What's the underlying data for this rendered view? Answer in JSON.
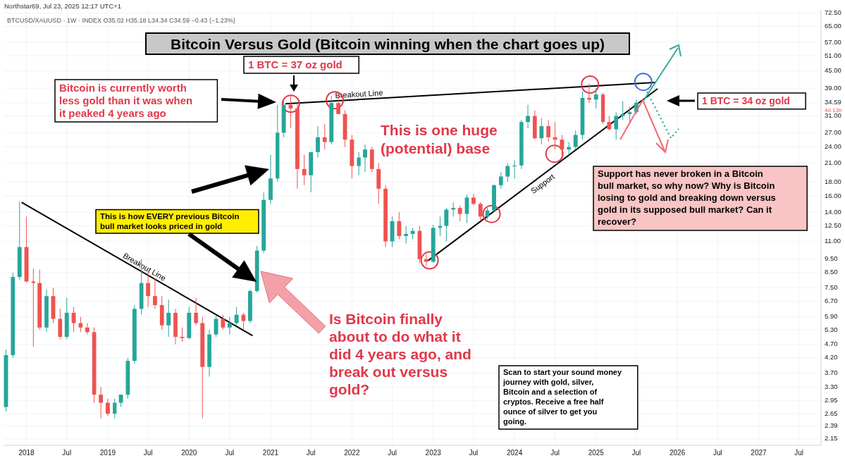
{
  "chart_data": {
    "type": "candlestick",
    "title": "Bitcoin Versus Gold (Bitcoin winning when the chart goes up)",
    "subtitle": "BTCUSD/XAUUSD · 1W · INDEX  O35.02  H35.18  L34.34  C34.59  −0.43 (−1.23%)",
    "annotations": [
      "1 BTC = 37 oz gold",
      "Bitcoin is currently worth less gold than it was when it peaked 4 years ago",
      "This is one huge (potential) base",
      "This is how EVERY previous Bitcoin bull market looks priced in gold",
      "Is Bitcoin finally about to do what it did 4 years ago, and break out versus gold?",
      "1 BTC = 34 oz gold",
      "Support has never broken in a Bitcoin bull market, so why now? Why is Bitcoin losing to gold and breaking down versus gold in its supposed bull market? Can it recover?",
      "Scan to start your sound money journey with gold, silver, Bitcoin and a selection of cryptos. Receive a free half ounce of silver to get you going.",
      "Northstar69, Jul 23, 2025 12:17 UTC+1",
      "4d 13h"
    ],
    "x": [
      "2017-10",
      "2017-11",
      "2017-12",
      "2018-01",
      "2018-02",
      "2018-03",
      "2018-04",
      "2018-05",
      "2018-06",
      "2018-07",
      "2018-08",
      "2018-09",
      "2018-10",
      "2018-11",
      "2018-12",
      "2019-01",
      "2019-02",
      "2019-03",
      "2019-04",
      "2019-05",
      "2019-06",
      "2019-07",
      "2019-08",
      "2019-09",
      "2019-10",
      "2019-11",
      "2019-12",
      "2020-01",
      "2020-02",
      "2020-03",
      "2020-04",
      "2020-05",
      "2020-06",
      "2020-07",
      "2020-08",
      "2020-09",
      "2020-10",
      "2020-11",
      "2020-12",
      "2021-01",
      "2021-02",
      "2021-03",
      "2021-04",
      "2021-05",
      "2021-06",
      "2021-07",
      "2021-08",
      "2021-09",
      "2021-10",
      "2021-11",
      "2021-12",
      "2022-01",
      "2022-02",
      "2022-03",
      "2022-04",
      "2022-05",
      "2022-06",
      "2022-07",
      "2022-08",
      "2022-09",
      "2022-10",
      "2022-11",
      "2022-12",
      "2023-01",
      "2023-02",
      "2023-03",
      "2023-04",
      "2023-05",
      "2023-06",
      "2023-07",
      "2023-08",
      "2023-09",
      "2023-10",
      "2023-11",
      "2023-12",
      "2024-01",
      "2024-02",
      "2024-03",
      "2024-04",
      "2024-05",
      "2024-06",
      "2024-07",
      "2024-08",
      "2024-09",
      "2024-10",
      "2024-11",
      "2024-12",
      "2025-01",
      "2025-02",
      "2025-03",
      "2025-04",
      "2025-05",
      "2025-06",
      "2025-07"
    ],
    "ohlc": [
      [
        2.8,
        4.5,
        2.7,
        4.3
      ],
      [
        4.3,
        8.5,
        4.2,
        8.2
      ],
      [
        8.2,
        15.3,
        8.0,
        10.5
      ],
      [
        10.5,
        13.5,
        7.8,
        7.9
      ],
      [
        7.9,
        8.8,
        4.6,
        7.8
      ],
      [
        7.8,
        8.7,
        5.3,
        5.4
      ],
      [
        5.4,
        7.4,
        5.2,
        7.0
      ],
      [
        7.0,
        7.5,
        5.6,
        5.8
      ],
      [
        5.8,
        6.3,
        4.9,
        5.0
      ],
      [
        5.0,
        6.9,
        4.9,
        6.1
      ],
      [
        6.1,
        6.4,
        5.2,
        5.6
      ],
      [
        5.6,
        5.9,
        5.2,
        5.4
      ],
      [
        5.4,
        5.6,
        5.1,
        5.2
      ],
      [
        5.2,
        5.4,
        2.9,
        3.1
      ],
      [
        3.1,
        3.3,
        2.55,
        2.9
      ],
      [
        2.9,
        3.0,
        2.6,
        2.65
      ],
      [
        2.65,
        3.0,
        2.55,
        2.9
      ],
      [
        2.9,
        3.1,
        2.8,
        3.1
      ],
      [
        3.1,
        4.2,
        3.0,
        4.1
      ],
      [
        4.1,
        6.5,
        4.0,
        6.3
      ],
      [
        6.3,
        9.5,
        6.0,
        7.8
      ],
      [
        7.8,
        8.6,
        6.4,
        7.0
      ],
      [
        7.0,
        8.1,
        6.3,
        6.5
      ],
      [
        6.5,
        7.0,
        5.3,
        5.5
      ],
      [
        5.5,
        6.8,
        5.0,
        6.1
      ],
      [
        6.1,
        6.3,
        4.7,
        5.0
      ],
      [
        5.0,
        5.4,
        4.8,
        4.95
      ],
      [
        4.95,
        6.4,
        4.9,
        6.1
      ],
      [
        6.1,
        6.9,
        5.5,
        5.6
      ],
      [
        5.6,
        5.9,
        2.55,
        3.9
      ],
      [
        3.9,
        5.3,
        3.6,
        5.1
      ],
      [
        5.1,
        6.0,
        5.0,
        5.8
      ],
      [
        5.8,
        6.0,
        5.3,
        5.4
      ],
      [
        5.4,
        5.9,
        5.1,
        5.6
      ],
      [
        5.6,
        6.4,
        5.5,
        6.0
      ],
      [
        6.0,
        6.1,
        5.3,
        5.7
      ],
      [
        5.7,
        7.4,
        5.6,
        7.3
      ],
      [
        7.3,
        10.6,
        7.2,
        10.2
      ],
      [
        10.2,
        16.5,
        10.0,
        15.5
      ],
      [
        15.5,
        22.5,
        15.0,
        18.5
      ],
      [
        18.5,
        34.0,
        18.0,
        27.0
      ],
      [
        27.0,
        35.5,
        26.0,
        34.0
      ],
      [
        34.0,
        37.0,
        28.0,
        33.0
      ],
      [
        33.0,
        34.5,
        17.0,
        20.0
      ],
      [
        20.0,
        22.5,
        17.5,
        19.0
      ],
      [
        19.0,
        23.0,
        16.5,
        23.0
      ],
      [
        23.0,
        28.5,
        22.0,
        26.0
      ],
      [
        26.0,
        29.0,
        23.5,
        25.0
      ],
      [
        25.0,
        36.5,
        24.5,
        34.5
      ],
      [
        34.5,
        37.0,
        31.5,
        31.5
      ],
      [
        31.5,
        32.5,
        24.0,
        25.5
      ],
      [
        25.5,
        26.5,
        18.5,
        20.5
      ],
      [
        20.5,
        23.0,
        19.0,
        22.0
      ],
      [
        22.0,
        24.5,
        19.5,
        23.5
      ],
      [
        23.5,
        24.0,
        19.5,
        20.0
      ],
      [
        20.0,
        21.0,
        15.0,
        17.0
      ],
      [
        17.0,
        17.5,
        10.5,
        11.0
      ],
      [
        11.0,
        13.5,
        10.5,
        13.0
      ],
      [
        13.0,
        14.0,
        11.2,
        11.5
      ],
      [
        11.5,
        12.5,
        10.8,
        11.7
      ],
      [
        11.7,
        12.3,
        11.2,
        12.0
      ],
      [
        12.0,
        12.5,
        9.2,
        9.5
      ],
      [
        9.5,
        9.9,
        9.0,
        9.3
      ],
      [
        9.3,
        12.6,
        9.2,
        12.3
      ],
      [
        12.3,
        13.5,
        11.5,
        12.5
      ],
      [
        12.5,
        14.5,
        11.0,
        14.3
      ],
      [
        14.3,
        15.2,
        13.5,
        14.5
      ],
      [
        14.5,
        14.8,
        13.0,
        13.8
      ],
      [
        13.8,
        16.2,
        12.8,
        15.8
      ],
      [
        15.8,
        16.3,
        14.8,
        15.0
      ],
      [
        15.0,
        15.2,
        13.0,
        13.5
      ],
      [
        13.5,
        14.5,
        13.2,
        14.2
      ],
      [
        14.2,
        17.6,
        14.0,
        17.5
      ],
      [
        17.5,
        19.5,
        17.0,
        18.8
      ],
      [
        18.8,
        21.0,
        18.0,
        20.5
      ],
      [
        20.5,
        21.5,
        18.5,
        20.6
      ],
      [
        20.6,
        30.0,
        20.0,
        29.5
      ],
      [
        29.5,
        34.0,
        28.0,
        31.0
      ],
      [
        31.0,
        32.5,
        25.5,
        25.8
      ],
      [
        25.8,
        30.5,
        24.5,
        28.5
      ],
      [
        28.5,
        30.0,
        25.0,
        26.0
      ],
      [
        26.0,
        29.5,
        23.5,
        25.5
      ],
      [
        25.5,
        26.5,
        21.5,
        23.5
      ],
      [
        23.5,
        25.0,
        22.5,
        24.0
      ],
      [
        24.0,
        27.5,
        23.5,
        26.5
      ],
      [
        26.5,
        38.0,
        25.5,
        36.0
      ],
      [
        36.0,
        40.5,
        34.5,
        35.5
      ],
      [
        35.5,
        39.0,
        33.0,
        37.0
      ],
      [
        37.0,
        37.5,
        29.0,
        29.5
      ],
      [
        29.5,
        31.0,
        27.5,
        27.8
      ],
      [
        27.8,
        32.0,
        25.5,
        31.0
      ],
      [
        31.0,
        35.0,
        30.0,
        31.5
      ],
      [
        31.5,
        33.5,
        29.5,
        32.0
      ],
      [
        32.0,
        35.5,
        31.5,
        34.59
      ]
    ],
    "colors": [
      "#26a69a",
      "#26a69a",
      "#26a69a",
      "#ef5350",
      "#ef5350",
      "#ef5350",
      "#26a69a",
      "#ef5350",
      "#ef5350",
      "#26a69a",
      "#ef5350",
      "#ef5350",
      "#ef5350",
      "#ef5350",
      "#ef5350",
      "#ef5350",
      "#26a69a",
      "#26a69a",
      "#26a69a",
      "#26a69a",
      "#26a69a",
      "#ef5350",
      "#ef5350",
      "#ef5350",
      "#26a69a",
      "#ef5350",
      "#ef5350",
      "#26a69a",
      "#ef5350",
      "#ef5350",
      "#26a69a",
      "#26a69a",
      "#ef5350",
      "#26a69a",
      "#26a69a",
      "#ef5350",
      "#26a69a",
      "#26a69a",
      "#26a69a",
      "#26a69a",
      "#26a69a",
      "#26a69a",
      "#ef5350",
      "#ef5350",
      "#ef5350",
      "#26a69a",
      "#26a69a",
      "#ef5350",
      "#26a69a",
      "#ef5350",
      "#ef5350",
      "#ef5350",
      "#26a69a",
      "#26a69a",
      "#ef5350",
      "#ef5350",
      "#ef5350",
      "#26a69a",
      "#ef5350",
      "#26a69a",
      "#26a69a",
      "#ef5350",
      "#ef5350",
      "#26a69a",
      "#26a69a",
      "#26a69a",
      "#26a69a",
      "#ef5350",
      "#26a69a",
      "#ef5350",
      "#ef5350",
      "#26a69a",
      "#26a69a",
      "#26a69a",
      "#26a69a",
      "#26a69a",
      "#26a69a",
      "#26a69a",
      "#ef5350",
      "#26a69a",
      "#ef5350",
      "#ef5350",
      "#ef5350",
      "#26a69a",
      "#26a69a",
      "#26a69a",
      "#ef5350",
      "#26a69a",
      "#ef5350",
      "#ef5350",
      "#26a69a",
      "#26a69a",
      "#26a69a",
      "#26a69a"
    ],
    "series": [
      {
        "type": "line",
        "name": "Breakout Line",
        "color": "#000000",
        "x": [
          "2017-12-10",
          "2020-10-12"
        ],
        "values": [
          15.2,
          5.05
        ]
      },
      {
        "type": "line",
        "name": "Breakout Line",
        "color": "#000000",
        "x": [
          "2021-03-08",
          "2025-09-24"
        ],
        "values": [
          34.3,
          40.9
        ]
      },
      {
        "type": "line",
        "name": "Support",
        "color": "#000000",
        "x": [
          "2022-12-10",
          "2025-10-04"
        ],
        "values": [
          9.4,
          38.8
        ]
      },
      {
        "type": "scatter",
        "color": "#e0384a",
        "marker": "circle",
        "x": [
          "2021-04-02",
          "2021-10-16",
          "2024-12-05",
          "2023-09-20",
          "2024-06-28",
          "2022-12-16"
        ],
        "values": [
          34.3,
          35.3,
          40.2,
          13.8,
          22.7,
          9.4
        ]
      },
      {
        "type": "scatter",
        "color": "#3a6fd8",
        "marker": "circle",
        "x": [
          "2025-08-01"
        ],
        "values": [
          41.1
        ]
      }
    ],
    "xlim": [
      "2017-09-20",
      "2027-10-08"
    ],
    "xticks": [
      {
        "value": "2018-01-01",
        "label": "2018"
      },
      {
        "value": "2018-07-01",
        "label": "Jul"
      },
      {
        "value": "2019-01-01",
        "label": "2019"
      },
      {
        "value": "2019-07-01",
        "label": "Jul"
      },
      {
        "value": "2020-01-01",
        "label": "2020"
      },
      {
        "value": "2020-07-01",
        "label": "Jul"
      },
      {
        "value": "2021-01-01",
        "label": "2021"
      },
      {
        "value": "2021-07-01",
        "label": "Jul"
      },
      {
        "value": "2022-01-01",
        "label": "2022"
      },
      {
        "value": "2022-07-01",
        "label": "Jul"
      },
      {
        "value": "2023-01-01",
        "label": "2023"
      },
      {
        "value": "2023-07-01",
        "label": "Jul"
      },
      {
        "value": "2024-01-01",
        "label": "2024"
      },
      {
        "value": "2024-07-01",
        "label": "Jul"
      },
      {
        "value": "2025-01-01",
        "label": "2025"
      },
      {
        "value": "2025-07-01",
        "label": "Jul"
      },
      {
        "value": "2026-01-01",
        "label": "2026"
      },
      {
        "value": "2026-07-01",
        "label": "Jul"
      },
      {
        "value": "2027-01-01",
        "label": "2027"
      },
      {
        "value": "2027-07-01",
        "label": "Jul"
      }
    ],
    "ylim": [
      2.04,
      74.5
    ],
    "yticks": [
      {
        "value": 2.15,
        "label": "2.15"
      },
      {
        "value": 2.39,
        "label": "2.39"
      },
      {
        "value": 2.65,
        "label": "2.65"
      },
      {
        "value": 2.95,
        "label": "2.95"
      },
      {
        "value": 3.3,
        "label": "3.30"
      },
      {
        "value": 3.7,
        "label": "3.70"
      },
      {
        "value": 4.2,
        "label": "4.20"
      },
      {
        "value": 4.7,
        "label": "4.70"
      },
      {
        "value": 5.3,
        "label": "5.30"
      },
      {
        "value": 5.9,
        "label": "5.90"
      },
      {
        "value": 6.7,
        "label": "6.70"
      },
      {
        "value": 7.5,
        "label": "7.50"
      },
      {
        "value": 8.5,
        "label": "8.50"
      },
      {
        "value": 9.5,
        "label": "9.50"
      },
      {
        "value": 11,
        "label": "11.00"
      },
      {
        "value": 12.5,
        "label": "12.50"
      },
      {
        "value": 14,
        "label": "14.00"
      },
      {
        "value": 16,
        "label": "16.00"
      },
      {
        "value": 18,
        "label": "18.00"
      },
      {
        "value": 21,
        "label": "21.00"
      },
      {
        "value": 24,
        "label": "24.00"
      },
      {
        "value": 27,
        "label": "27.00"
      },
      {
        "value": 31,
        "label": "31.00"
      },
      {
        "value": 34.59,
        "label": "34.59"
      },
      {
        "value": 39,
        "label": "39.00"
      },
      {
        "value": 45,
        "label": "45.00"
      },
      {
        "value": 51,
        "label": "51.00"
      },
      {
        "value": 57,
        "label": "57.00"
      },
      {
        "value": 65,
        "label": "65.00"
      },
      {
        "value": 72.5,
        "label": "72.50"
      }
    ],
    "log": true,
    "grid": true
  }
}
